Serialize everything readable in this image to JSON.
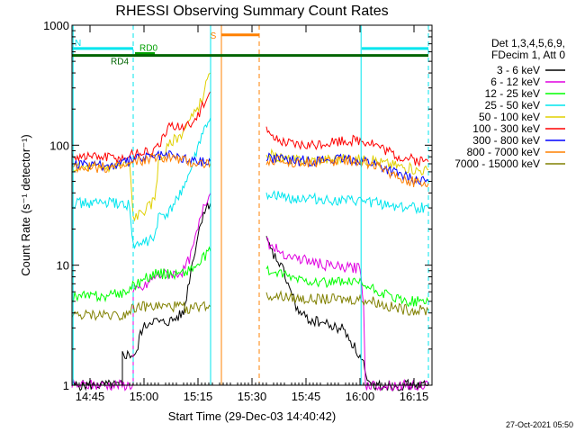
{
  "chart_data": {
    "type": "line",
    "title": "RHESSI Observing Summary Count Rates",
    "xlabel": "Start Time (29-Dec-03 14:40:42)",
    "ylabel": "Count Rate (s⁻¹ detector⁻¹)",
    "yscale": "log",
    "ylim": [
      1,
      1000
    ],
    "xlim_minutes_after_1440": [
      0,
      100
    ],
    "x_ticks": [
      {
        "label": "14:45",
        "t": 5
      },
      {
        "label": "15:00",
        "t": 20
      },
      {
        "label": "15:15",
        "t": 35
      },
      {
        "label": "15:30",
        "t": 50
      },
      {
        "label": "15:45",
        "t": 65
      },
      {
        "label": "16:00",
        "t": 80
      },
      {
        "label": "16:15",
        "t": 95
      }
    ],
    "y_ticks": [
      {
        "label": "1",
        "v": 1
      },
      {
        "label": "10",
        "v": 10
      },
      {
        "label": "100",
        "v": 100
      },
      {
        "label": "1000",
        "v": 1000
      }
    ],
    "legend_title_1": "Det 1,3,4,5,6,9,",
    "legend_title_2": "FDecim 1, Att 0",
    "legend_placement": "right",
    "timestamp": "27-Oct-2021 05:50",
    "flags": [
      {
        "label": "N",
        "color": "#00e5ee",
        "t0": 0,
        "t1": 17,
        "y": 640
      },
      {
        "label": "N",
        "color": "#00e5ee",
        "t0": 80.5,
        "t1": 99,
        "y": 640
      },
      {
        "label": "RD0",
        "color": "#00a000",
        "t0": 17.5,
        "t1": 23,
        "y": 580
      },
      {
        "label": "RD4",
        "color": "#006400",
        "t0": 0,
        "t1": 99,
        "y": 560
      },
      {
        "label": "S",
        "color": "#ff8000",
        "t0": 41.5,
        "t1": 52,
        "y": 830
      }
    ],
    "vlines": [
      {
        "t": 17,
        "color": "#00e5ee",
        "style": "dashed"
      },
      {
        "t": 99,
        "color": "#00e5ee",
        "style": "dashed"
      },
      {
        "t": 41.5,
        "color": "#ff8000",
        "style": "solid"
      },
      {
        "t": 52,
        "color": "#ff8000",
        "style": "dashed"
      },
      {
        "t": 0.3,
        "color": "#00e5ee",
        "style": "solid"
      },
      {
        "t": 38.5,
        "color": "#00e5ee",
        "style": "solid"
      },
      {
        "t": 80.3,
        "color": "#00e5ee",
        "style": "solid"
      }
    ],
    "series": [
      {
        "name": "3 - 6 keV",
        "color": "#000000",
        "segments": [
          [
            [
              0,
              1
            ],
            [
              14,
              1
            ],
            [
              14,
              1.8
            ],
            [
              18,
              1.8
            ],
            [
              19,
              2.8
            ],
            [
              22,
              3.5
            ],
            [
              25,
              3.3
            ],
            [
              28,
              3.5
            ],
            [
              31,
              4
            ],
            [
              33,
              9
            ],
            [
              35,
              18
            ],
            [
              36.5,
              28
            ],
            [
              38,
              32
            ],
            [
              38.5,
              33
            ]
          ],
          [
            [
              54,
              16
            ],
            [
              56,
              12
            ],
            [
              58,
              10
            ],
            [
              60,
              7
            ],
            [
              63,
              4
            ],
            [
              66,
              3.5
            ],
            [
              70,
              3.3
            ],
            [
              73,
              3
            ],
            [
              75,
              3
            ],
            [
              77,
              2.5
            ],
            [
              80,
              1.7
            ],
            [
              81,
              1.5
            ],
            [
              82,
              1
            ],
            [
              99,
              1
            ]
          ]
        ]
      },
      {
        "name": "6 - 12 keV",
        "color": "#e000e0",
        "segments": [
          [
            [
              0,
              1
            ],
            [
              17,
              1
            ],
            [
              17,
              6
            ],
            [
              20,
              6.5
            ],
            [
              23,
              8
            ],
            [
              26,
              8.5
            ],
            [
              29,
              8.5
            ],
            [
              31,
              9
            ],
            [
              33,
              12
            ],
            [
              35,
              20
            ],
            [
              36.5,
              32
            ],
            [
              38,
              38
            ],
            [
              38.5,
              40
            ]
          ],
          [
            [
              54,
              16
            ],
            [
              56,
              14
            ],
            [
              60,
              12
            ],
            [
              65,
              11
            ],
            [
              70,
              10
            ],
            [
              75,
              9.5
            ],
            [
              80,
              9.5
            ],
            [
              81,
              5
            ],
            [
              81.5,
              1
            ],
            [
              99,
              1
            ]
          ]
        ]
      },
      {
        "name": "12 - 25 keV",
        "color": "#00ff00",
        "segments": [
          [
            [
              0,
              5.5
            ],
            [
              10,
              5.5
            ],
            [
              15,
              6
            ],
            [
              18,
              7
            ],
            [
              21,
              8
            ],
            [
              24,
              8.5
            ],
            [
              27,
              8.5
            ],
            [
              30,
              8.5
            ],
            [
              32,
              9
            ],
            [
              35,
              10
            ],
            [
              37,
              12
            ],
            [
              38.5,
              13
            ]
          ],
          [
            [
              54,
              9
            ],
            [
              57,
              8.5
            ],
            [
              60,
              8
            ],
            [
              65,
              7.5
            ],
            [
              70,
              7.2
            ],
            [
              75,
              7.2
            ],
            [
              80,
              7
            ],
            [
              84,
              6.2
            ],
            [
              88,
              5.5
            ],
            [
              92,
              5
            ],
            [
              96,
              5
            ],
            [
              99,
              5
            ]
          ]
        ]
      },
      {
        "name": "25 - 50 keV",
        "color": "#00e5ee",
        "segments": [
          [
            [
              0,
              33
            ],
            [
              10,
              33
            ],
            [
              16,
              32
            ],
            [
              17,
              14
            ],
            [
              19,
              15
            ],
            [
              21,
              16
            ],
            [
              23,
              17
            ],
            [
              24,
              25
            ],
            [
              27,
              27
            ],
            [
              30,
              40
            ],
            [
              33,
              60
            ],
            [
              36,
              120
            ],
            [
              38.5,
              170
            ]
          ],
          [
            [
              54,
              40
            ],
            [
              58,
              37
            ],
            [
              62,
              36
            ],
            [
              66,
              36
            ],
            [
              70,
              35
            ],
            [
              75,
              34
            ],
            [
              80,
              34
            ],
            [
              85,
              33
            ],
            [
              90,
              31
            ],
            [
              95,
              30
            ],
            [
              99,
              30
            ]
          ]
        ]
      },
      {
        "name": "50 - 100 keV",
        "color": "#e0d000",
        "segments": [
          [
            [
              0,
              65
            ],
            [
              8,
              65
            ],
            [
              14,
              68
            ],
            [
              16,
              70
            ],
            [
              17,
              25
            ],
            [
              19,
              27
            ],
            [
              22,
              32
            ],
            [
              23,
              37
            ],
            [
              24,
              70
            ],
            [
              26,
              90
            ],
            [
              28,
              110
            ],
            [
              30,
              120
            ],
            [
              32,
              150
            ],
            [
              34,
              180
            ],
            [
              36,
              240
            ],
            [
              38,
              380
            ],
            [
              38.5,
              400
            ]
          ],
          [
            [
              54,
              85
            ],
            [
              58,
              78
            ],
            [
              62,
              75
            ],
            [
              66,
              75
            ],
            [
              70,
              76
            ],
            [
              75,
              77
            ],
            [
              80,
              76
            ],
            [
              84,
              74
            ],
            [
              88,
              70
            ],
            [
              92,
              66
            ],
            [
              96,
              62
            ],
            [
              99,
              62
            ]
          ]
        ]
      },
      {
        "name": "100 - 300 keV",
        "color": "#ff0000",
        "segments": [
          [
            [
              0,
              82
            ],
            [
              10,
              80
            ],
            [
              14,
              78
            ],
            [
              17,
              85
            ],
            [
              20,
              88
            ],
            [
              23,
              88
            ],
            [
              25,
              110
            ],
            [
              27,
              140
            ],
            [
              29,
              150
            ],
            [
              31,
              140
            ],
            [
              33,
              150
            ],
            [
              35,
              180
            ],
            [
              37,
              230
            ],
            [
              38.5,
              280
            ]
          ],
          [
            [
              54,
              150
            ],
            [
              55,
              115
            ],
            [
              58,
              105
            ],
            [
              62,
              100
            ],
            [
              66,
              100
            ],
            [
              70,
              105
            ],
            [
              75,
              110
            ],
            [
              80,
              110
            ],
            [
              83,
              107
            ],
            [
              86,
              95
            ],
            [
              90,
              82
            ],
            [
              95,
              75
            ],
            [
              99,
              73
            ]
          ]
        ]
      },
      {
        "name": "300 - 800 keV",
        "color": "#0000ff",
        "segments": [
          [
            [
              0,
              68
            ],
            [
              10,
              67
            ],
            [
              15,
              72
            ],
            [
              18,
              78
            ],
            [
              21,
              80
            ],
            [
              24,
              82
            ],
            [
              27,
              83
            ],
            [
              30,
              80
            ],
            [
              33,
              75
            ],
            [
              36,
              74
            ],
            [
              38.5,
              73
            ]
          ],
          [
            [
              54,
              80
            ],
            [
              58,
              76
            ],
            [
              62,
              74
            ],
            [
              66,
              74
            ],
            [
              70,
              75
            ],
            [
              75,
              76
            ],
            [
              80,
              76
            ],
            [
              84,
              70
            ],
            [
              88,
              62
            ],
            [
              92,
              55
            ],
            [
              96,
              50
            ],
            [
              99,
              50
            ]
          ]
        ]
      },
      {
        "name": "800 - 7000 keV",
        "color": "#ff8000",
        "segments": [
          [
            [
              0,
              66
            ],
            [
              10,
              65
            ],
            [
              15,
              67
            ],
            [
              18,
              73
            ],
            [
              21,
              76
            ],
            [
              24,
              78
            ],
            [
              27,
              80
            ],
            [
              30,
              76
            ],
            [
              33,
              72
            ],
            [
              36,
              71
            ],
            [
              38.5,
              71
            ]
          ],
          [
            [
              54,
              76
            ],
            [
              58,
              73
            ],
            [
              62,
              72
            ],
            [
              66,
              72
            ],
            [
              70,
              73
            ],
            [
              75,
              74
            ],
            [
              80,
              74
            ],
            [
              84,
              68
            ],
            [
              88,
              60
            ],
            [
              92,
              53
            ],
            [
              96,
              48
            ],
            [
              99,
              48
            ]
          ]
        ]
      },
      {
        "name": "7000 - 15000 keV",
        "color": "#808000",
        "segments": [
          [
            [
              0,
              3.8
            ],
            [
              5,
              3.8
            ],
            [
              10,
              3.9
            ],
            [
              14,
              3.8
            ],
            [
              17,
              4.5
            ],
            [
              20,
              4.5
            ],
            [
              23,
              4.5
            ],
            [
              26,
              4.5
            ],
            [
              30,
              4.5
            ],
            [
              33,
              4.3
            ],
            [
              36,
              4.6
            ],
            [
              38.5,
              4.5
            ]
          ],
          [
            [
              54,
              5.5
            ],
            [
              58,
              5.5
            ],
            [
              62,
              5.3
            ],
            [
              66,
              5.2
            ],
            [
              70,
              5.2
            ],
            [
              75,
              5.2
            ],
            [
              80,
              5.2
            ],
            [
              84,
              5
            ],
            [
              88,
              4.5
            ],
            [
              92,
              4.3
            ],
            [
              96,
              4.2
            ],
            [
              99,
              4.2
            ]
          ]
        ]
      }
    ]
  }
}
